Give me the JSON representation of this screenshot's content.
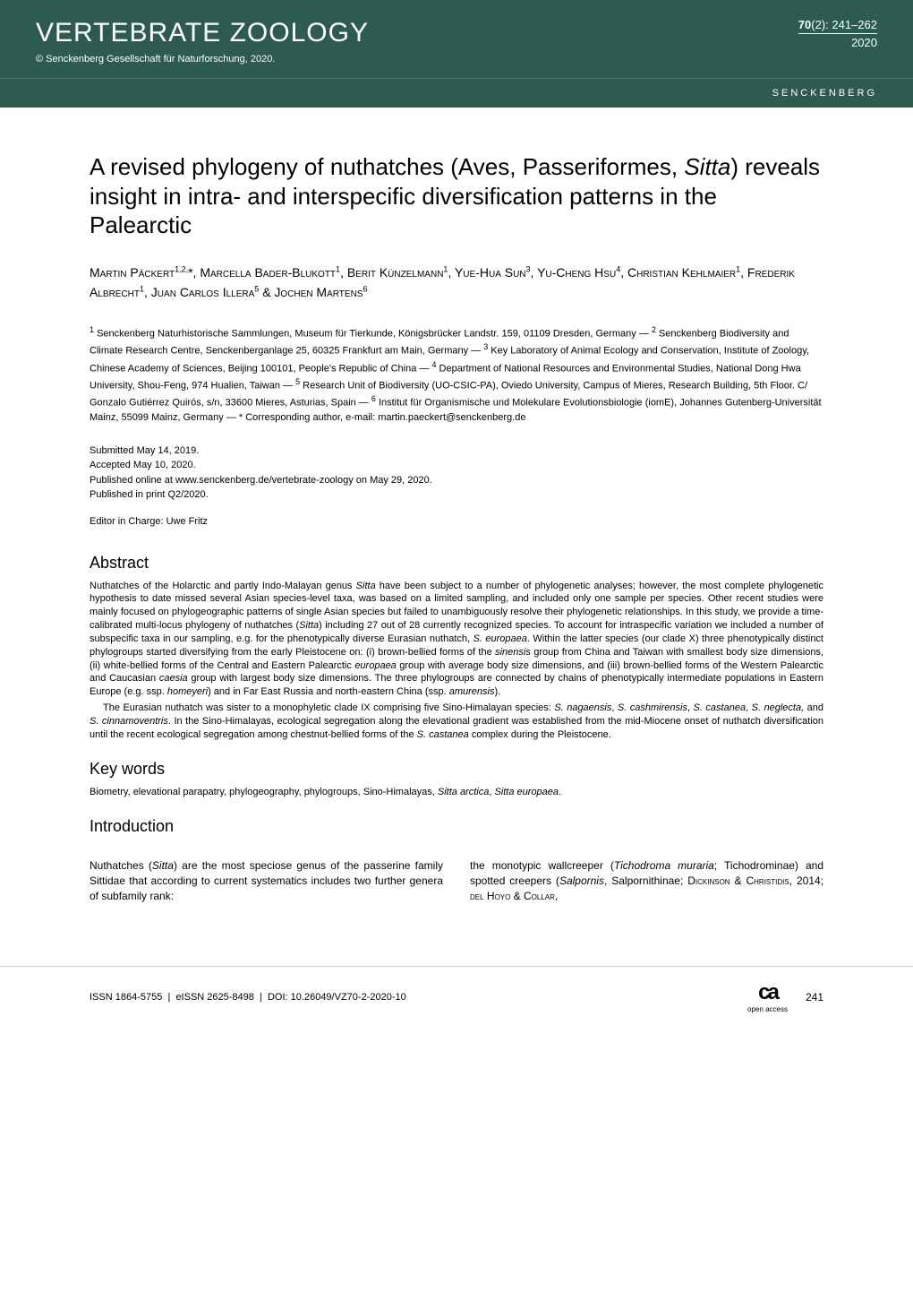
{
  "header": {
    "journal_title": "VERTEBRATE ZOOLOGY",
    "volume": "70",
    "issue": "(2):",
    "pages": "241–262",
    "year": "2020",
    "copyright": "© Senckenberg Gesellschaft für Naturforschung, 2020.",
    "institution": "SENCKENBERG"
  },
  "article": {
    "title_1": "A revised phylogeny of nuthatches (Aves, Passeriformes,",
    "title_italic": "Sitta",
    "title_2": ") reveals insight in intra- and interspecific diversification patterns in the Palearctic",
    "authors_html": "Martin Päckert<span class='sup'>1,2,</span>*, Marcella Bader-Blukott<span class='sup'>1</span>, Berit Künzelmann<span class='sup'>1</span>, Yue-Hua Sun<span class='sup'>3</span>, Yu-Cheng Hsu<span class='sup'>4</span>, Christian Kehlmaier<span class='sup'>1</span>, Frederik Albrecht<span class='sup'>1</span>, Juan Carlos Illera<span class='sup'>5</span> & Jochen Martens<span class='sup'>6</span>",
    "affiliations": "<span class='sup'>1</span> Senckenberg Naturhistorische Sammlungen, Museum für Tierkunde, Königsbrücker Landstr. 159, 01109 Dresden, Germany — <span class='sup'>2</span> Senckenberg Biodiversity and Climate Research Centre, Senckenberganlage 25, 60325 Frankfurt am Main, Germany — <span class='sup'>3</span> Key Laboratory of Animal Ecology and Conservation, Institute of Zoology, Chinese Academy of Sciences, Beijing 100101, People's Republic of China — <span class='sup'>4</span> Department of National Resources and Environmental Studies, National Dong Hwa University, Shou-Feng, 974 Hualien, Taiwan — <span class='sup'>5</span> Research Unit of Biodiversity (UO-CSIC-PA), Oviedo University, Campus of Mieres, Research Building, 5th Floor. C/ Gonzalo Gutiérrez Quirós, s/n, 33600 Mieres, Asturias, Spain — <span class='sup'>6</span> Institut für Organismische und Molekulare Evolutionsbiologie (iomE), Johannes Gutenberg-Universität Mainz, 55099 Mainz, Germany — * Corresponding author, e-mail: martin.paeckert@senckenberg.de",
    "dates": {
      "submitted": "Submitted May 14, 2019.",
      "accepted": "Accepted May 10, 2020.",
      "online": "Published online at www.senckenberg.de/vertebrate-zoology on May 29, 2020.",
      "print": "Published in print Q2/2020."
    },
    "editor": "Editor in Charge: Uwe Fritz"
  },
  "abstract": {
    "heading": "Abstract",
    "para1": "Nuthatches of the Holarctic and partly Indo-Malayan genus <span class='italic'>Sitta</span> have been subject to a number of phylogenetic analyses; however, the most complete phylogenetic hypothesis to date missed several Asian species-level taxa, was based on a limited sampling, and included only one sample per species. Other recent studies were mainly focused on phylogeographic patterns of single Asian species but failed to unambiguously resolve their phylogenetic relationships. In this study, we provide a time-calibrated multi-locus phylogeny of nuthatches (<span class='italic'>Sitta</span>) including 27 out of 28 currently recognized species. To account for intraspecific variation we included a number of subspecific taxa in our sampling, e.g. for the phenotypically diverse Eurasian nuthatch, <span class='italic'>S. europaea</span>. Within the latter species (our clade X) three phenotypically distinct phylogroups started diversifying from the early Pleistocene on: (i) brown-bellied forms of the <span class='italic'>sinensis</span> group from China and Taiwan with smallest body size dimensions, (ii) white-bellied forms of the Central and Eastern Palearctic <span class='italic'>europaea</span> group with average body size dimensions, and (iii) brown-bellied forms of the Western Palearctic and Caucasian <span class='italic'>caesia</span> group with largest body size dimensions. The three phylogroups are connected by chains of phenotypically intermediate populations in Eastern Europe (e.g. ssp. <span class='italic'>homeyeri</span>) and in Far East Russia and north-eastern China (ssp. <span class='italic'>amurensis</span>).",
    "para2": "The Eurasian nuthatch was sister to a monophyletic clade IX comprising five Sino-Himalayan species: <span class='italic'>S. nagaensis</span>, <span class='italic'>S. cashmirensis</span>, <span class='italic'>S. castanea</span>, <span class='italic'>S. neglecta,</span> and <span class='italic'>S. cinnamoventris</span>. In the Sino-Himalayas, ecological segregation along the elevational gradient was established from the mid-Miocene onset of nuthatch diversification until the recent ecological segregation among chestnut-bellied forms of the <span class='italic'>S. castanea</span> complex during the Pleistocene."
  },
  "keywords": {
    "heading": "Key words",
    "text": "Biometry, elevational parapatry, phylogeography, phylogroups, Sino-Himalayas, <span class='italic'>Sitta arctica</span>, <span class='italic'>Sitta europaea</span>."
  },
  "introduction": {
    "heading": "Introduction",
    "col1": "Nuthatches (<span class='italic'>Sitta</span>) are the most speciose genus of the passerine family Sittidae that according to current systematics includes two further genera of subfamily rank:",
    "col2": "the monotypic wallcreeper (<span class='italic'>Tichodroma muraria</span>; Tichodrominae) and spotted creepers (<span class='italic'>Salpornis</span>, Salpornithinae; <span class='smallcaps'>Dickinson & Christidis</span>, 2014; <span class='smallcaps'>del Hoyo & Collar</span>,"
  },
  "footer": {
    "issn": "ISSN 1864-5755",
    "eissn": "eISSN 2625-8498",
    "doi_label": "DOI:",
    "doi": "10.26049/VZ70-2-2020-10",
    "page": "241",
    "oa_label": "open access"
  },
  "colors": {
    "header_bg": "#2d5b4f",
    "text": "#000000",
    "bg": "#ffffff",
    "border": "#cccccc"
  }
}
